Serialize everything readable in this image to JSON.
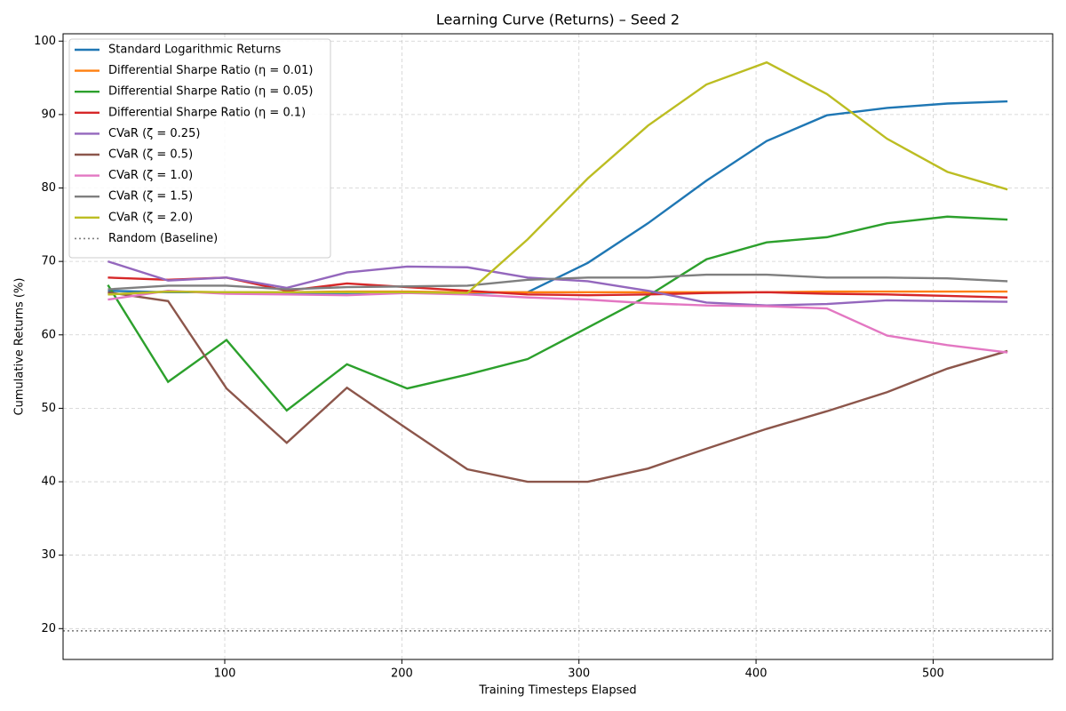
{
  "chart_data": {
    "type": "line",
    "title": "Learning Curve (Returns) – Seed 2",
    "x_label": "Training Timesteps Elapsed",
    "y_label": "Cumulative Returns (%)",
    "x": [
      34,
      68,
      101,
      135,
      169,
      203,
      237,
      271,
      305,
      339,
      372,
      406,
      440,
      474,
      508,
      542
    ],
    "series": [
      {
        "name": "Standard Logarithmic Returns",
        "color": "#1f77b4",
        "values": [
          66,
          65.8,
          65.8,
          65.7,
          65.7,
          65.8,
          65.7,
          65.8,
          69.8,
          75.2,
          81,
          86.4,
          89.9,
          90.9,
          91.5,
          91.8
        ]
      },
      {
        "name": "Differential Sharpe Ratio (η = 0.01)",
        "color": "#ff7f0e",
        "values": [
          65.5,
          65.9,
          65.8,
          65.8,
          65.9,
          65.9,
          65.8,
          65.8,
          65.8,
          65.8,
          65.8,
          65.8,
          65.9,
          65.9,
          65.9,
          65.9
        ]
      },
      {
        "name": "Differential Sharpe Ratio (η = 0.05)",
        "color": "#2ca02c",
        "values": [
          66.8,
          53.6,
          59.3,
          49.7,
          56,
          52.7,
          54.6,
          56.7,
          61,
          65.3,
          70.3,
          72.6,
          73.3,
          75.2,
          76.1,
          75.7
        ]
      },
      {
        "name": "Differential Sharpe Ratio (η = 0.1)",
        "color": "#d62728",
        "values": [
          67.8,
          67.5,
          67.8,
          66,
          67,
          66.5,
          66,
          65.5,
          65.4,
          65.5,
          65.7,
          65.8,
          65.6,
          65.5,
          65.3,
          65.1
        ]
      },
      {
        "name": "CVaR (ζ = 0.25)",
        "color": "#9467bd",
        "values": [
          70,
          67.4,
          67.8,
          66.4,
          68.5,
          69.3,
          69.2,
          67.8,
          67.3,
          66,
          64.4,
          64,
          64.2,
          64.7,
          64.6,
          64.5
        ]
      },
      {
        "name": "CVaR (ζ = 0.5)",
        "color": "#8c564b",
        "values": [
          65.8,
          64.6,
          52.7,
          45.3,
          52.8,
          47.2,
          41.7,
          40,
          40,
          41.8,
          44.5,
          47.2,
          49.6,
          52.2,
          55.4,
          57.8
        ]
      },
      {
        "name": "CVaR (ζ = 1.0)",
        "color": "#e377c2",
        "values": [
          64.8,
          66,
          65.6,
          65.5,
          65.4,
          65.7,
          65.5,
          65.1,
          64.8,
          64.3,
          64,
          63.9,
          63.6,
          59.9,
          58.6,
          57.6
        ]
      },
      {
        "name": "CVaR (ζ = 1.5)",
        "color": "#7f7f7f",
        "values": [
          66.2,
          66.7,
          66.7,
          66.2,
          66.5,
          66.6,
          66.7,
          67.5,
          67.8,
          67.8,
          68.2,
          68.2,
          67.8,
          67.8,
          67.7,
          67.3
        ]
      },
      {
        "name": "CVaR (ζ = 2.0)",
        "color": "#bcbd22",
        "values": [
          65.5,
          65.9,
          65.8,
          65.8,
          65.8,
          65.8,
          65.7,
          73,
          81.3,
          88.5,
          94.1,
          97.1,
          92.8,
          86.7,
          82.2,
          79.8
        ]
      }
    ],
    "baseline": {
      "name": "Random (Baseline)",
      "value": 19.7,
      "color": "#7f7f7f"
    },
    "xlim": [
      8.7,
      567.5
    ],
    "ylim": [
      15.8,
      101
    ],
    "xticks": [
      100,
      200,
      300,
      400,
      500
    ],
    "yticks": [
      20,
      30,
      40,
      50,
      60,
      70,
      80,
      90,
      100
    ],
    "grid": true,
    "legend": "upper left"
  }
}
